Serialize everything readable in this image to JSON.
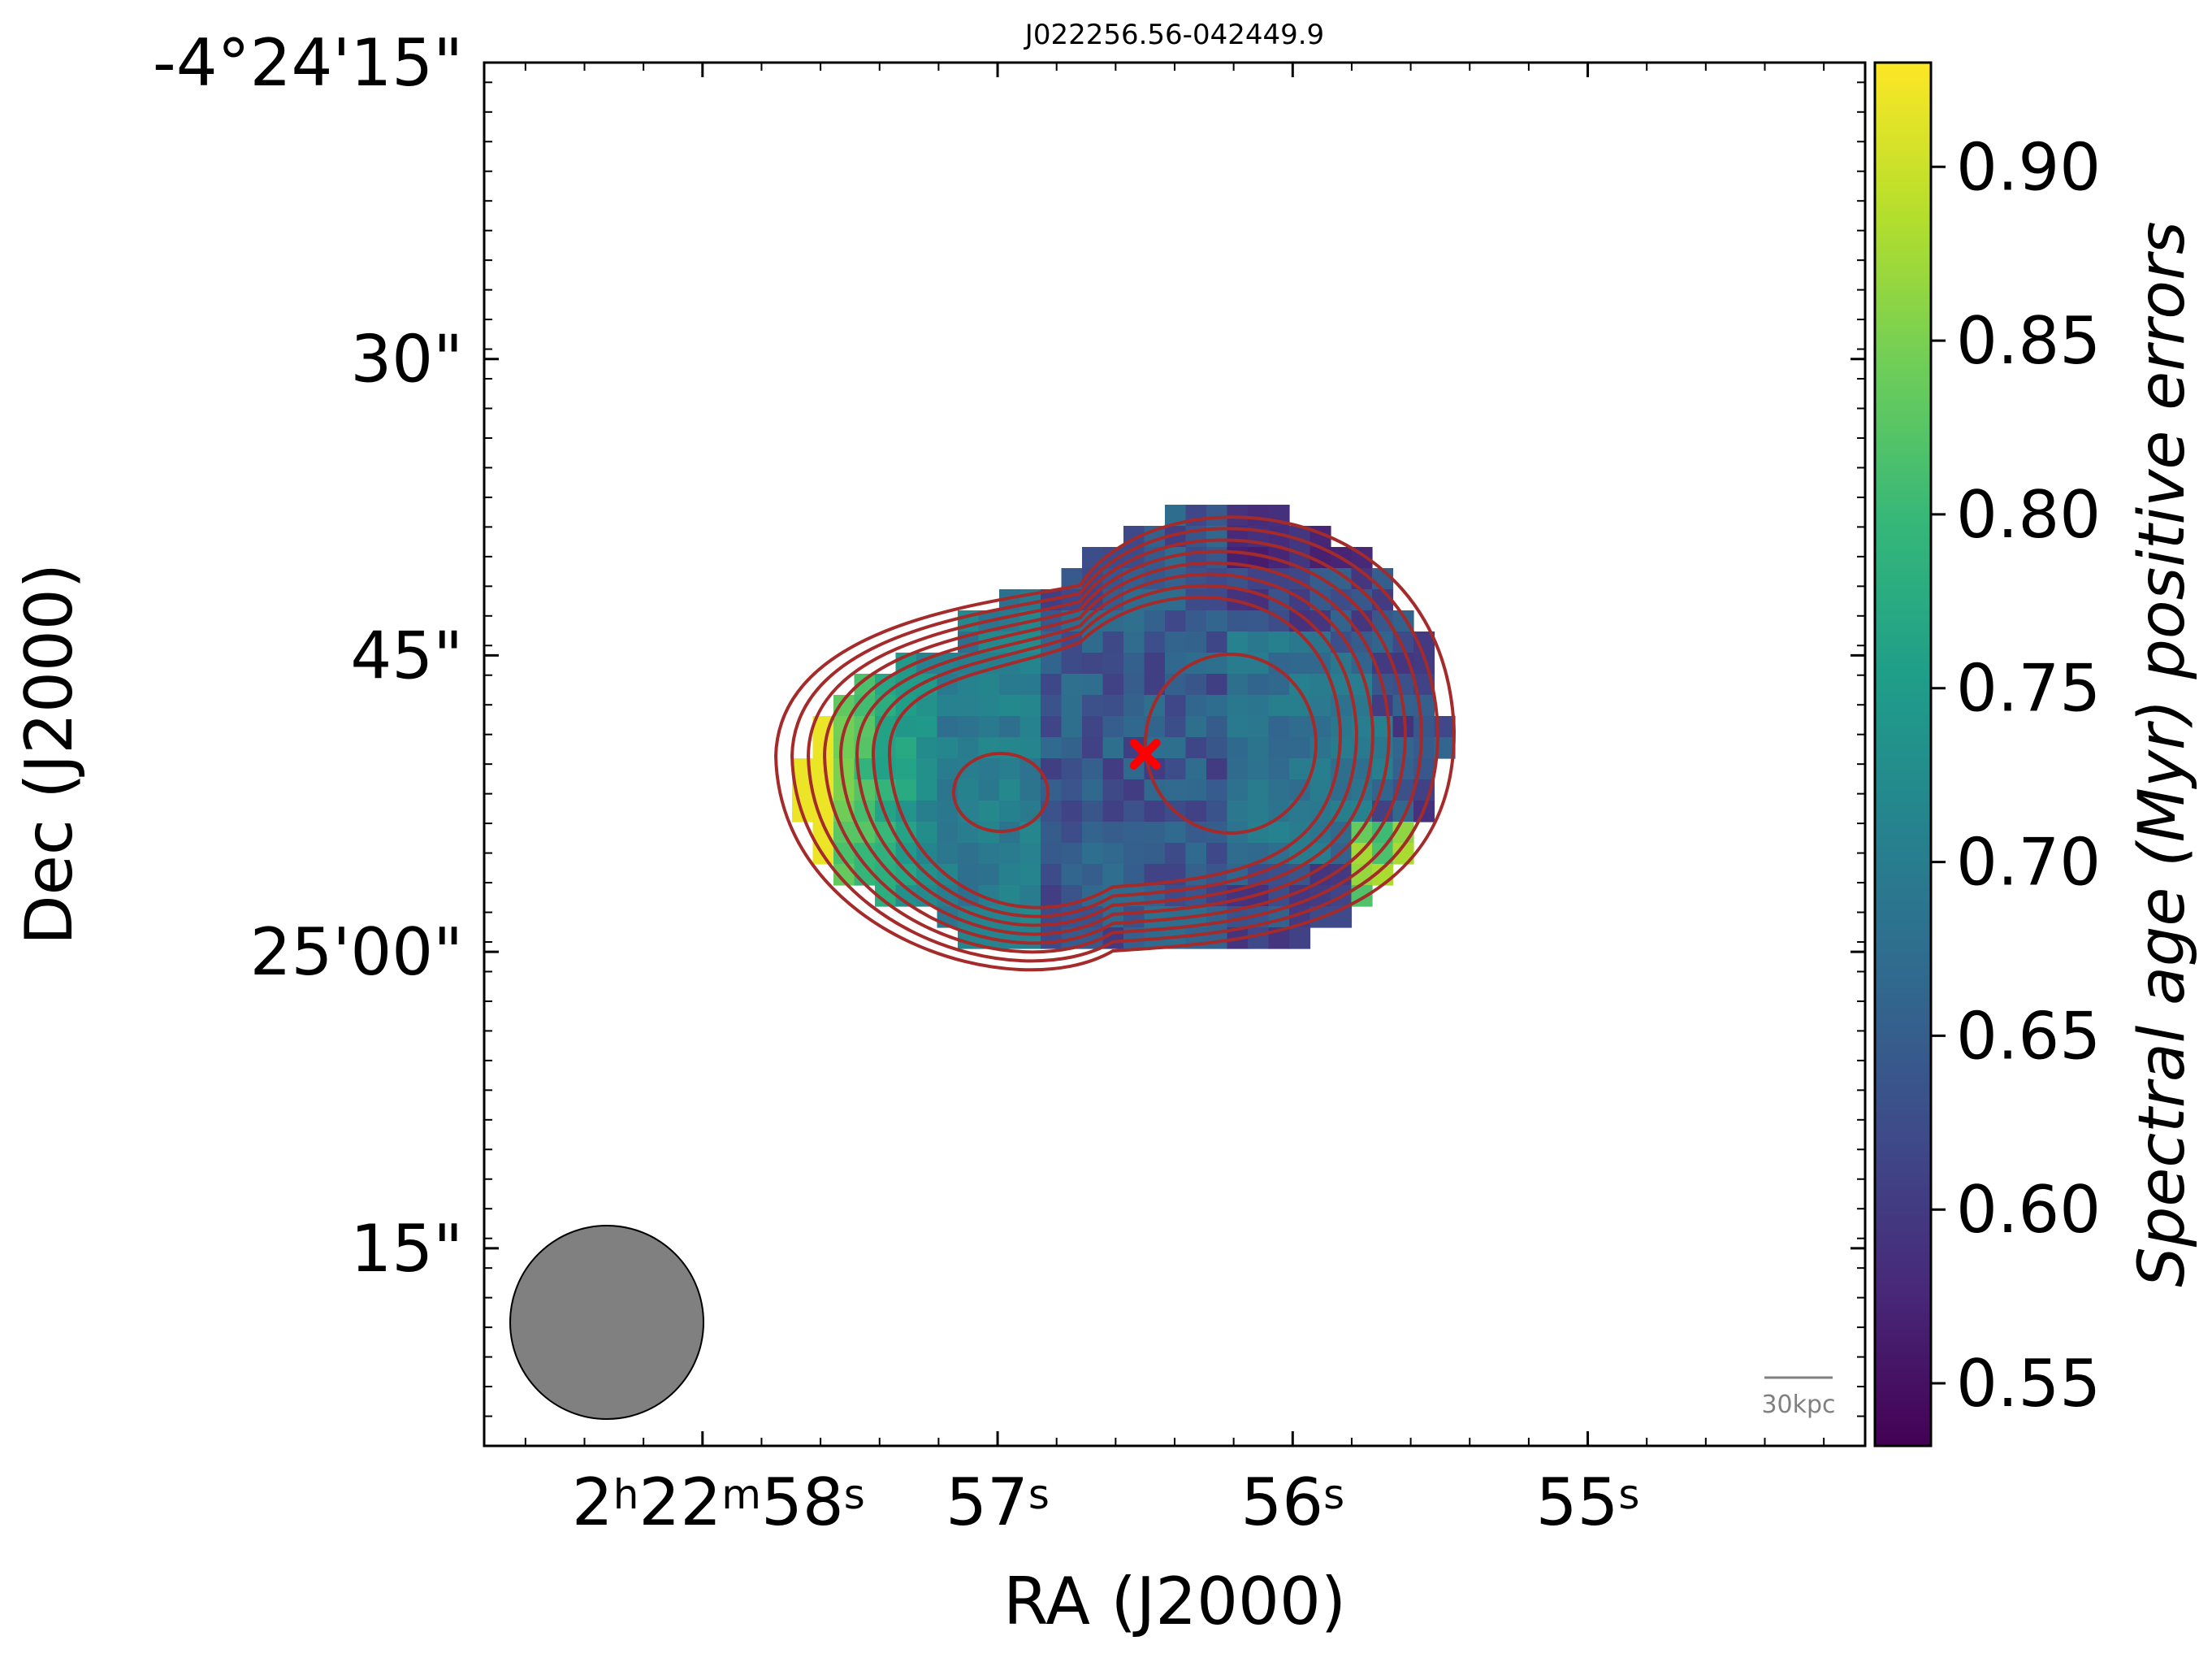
{
  "chart_data": {
    "type": "heatmap",
    "title": "J022256.56-042449.9",
    "xlabel": "RA (J2000)",
    "ylabel": "Dec (J2000)",
    "x_ticks": [
      {
        "main": "2",
        "sup1": "h",
        "mid": "22",
        "sup2": "m",
        "sec": "58",
        "sup3": "s",
        "ra_s": 58
      },
      {
        "sec": "57",
        "sup3": "s",
        "ra_s": 57
      },
      {
        "sec": "56",
        "sup3": "s",
        "ra_s": 56
      },
      {
        "sec": "55",
        "sup3": "s",
        "ra_s": 55
      }
    ],
    "y_ticks": [
      {
        "label": "-4°24'15\"",
        "dec_arcsec": 15
      },
      {
        "label": "30\"",
        "dec_arcsec": 30
      },
      {
        "label": "45\"",
        "dec_arcsec": 45
      },
      {
        "label": "25'00\"",
        "dec_arcsec": 60
      },
      {
        "label": "15\"",
        "dec_arcsec": 75
      }
    ],
    "ra_range_s": [
      58.74,
      54.06
    ],
    "dec_range_arcsec": [
      15,
      85
    ],
    "colorbar": {
      "label": "Spectral age (Myr) positive errors",
      "colormap": "viridis",
      "vmin": 0.532,
      "vmax": 0.93,
      "ticks": [
        "0.55",
        "0.60",
        "0.65",
        "0.70",
        "0.75",
        "0.80",
        "0.85",
        "0.90"
      ]
    },
    "source_marker": {
      "ra_s": 56.5,
      "dec_arcsec": 50,
      "color": "#ff0000",
      "symbol": "x"
    },
    "contour_color": "#a52a2a",
    "contour_levels": 8,
    "beam": {
      "color": "#808080"
    },
    "scalebar": {
      "label": "30kpc",
      "color": "#808080"
    },
    "grid": false
  }
}
